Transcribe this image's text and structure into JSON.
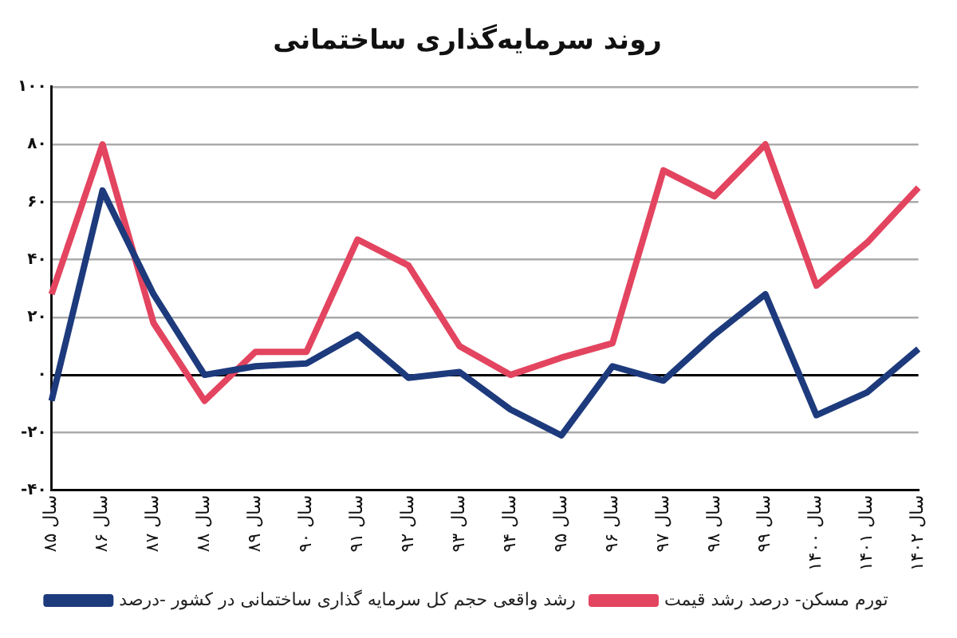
{
  "chart_data": {
    "type": "line",
    "title": "روند سرمایه‌گذاری ساختمانی",
    "categories": [
      "سال ۸۵",
      "سال ۸۶",
      "سال ۸۷",
      "سال ۸۸",
      "سال ۸۹",
      "سال ۹۰",
      "سال ۹۱",
      "سال ۹۲",
      "سال ۹۳",
      "سال ۹۴",
      "سال ۹۵",
      "سال ۹۶",
      "سال ۹۷",
      "سال ۹۸",
      "سال ۹۹",
      "سال ۱۴۰۰",
      "سال ۱۴۰۱",
      "سال ۱۴۰۲"
    ],
    "series": [
      {
        "name": "رشد واقعی حجم کل سرمایه گذاری ساختمانی در کشور -درصد",
        "color": "#1d3a7c",
        "values": [
          -9,
          64,
          28,
          0,
          3,
          4,
          14,
          -1,
          1,
          -12,
          -21,
          3,
          -2,
          14,
          28,
          -14,
          -6,
          9
        ]
      },
      {
        "name": "تورم مسکن- درصد رشد قیمت",
        "color": "#e3445f",
        "values": [
          28,
          80,
          18,
          -9,
          8,
          8,
          47,
          38,
          10,
          0,
          6,
          11,
          71,
          62,
          80,
          31,
          46,
          65
        ]
      }
    ],
    "ylim": [
      -40,
      100
    ],
    "yticks": [
      {
        "value": -40,
        "label": "-۴۰"
      },
      {
        "value": -20,
        "label": "-۲۰"
      },
      {
        "value": 0,
        "label": "۰"
      },
      {
        "value": 20,
        "label": "۲۰"
      },
      {
        "value": 40,
        "label": "۴۰"
      },
      {
        "value": 60,
        "label": "۶۰"
      },
      {
        "value": 80,
        "label": "۸۰"
      },
      {
        "value": 100,
        "label": "۱۰۰"
      }
    ],
    "grid": "y",
    "legend": "bottom",
    "marker": "none",
    "line_style": "solid"
  }
}
